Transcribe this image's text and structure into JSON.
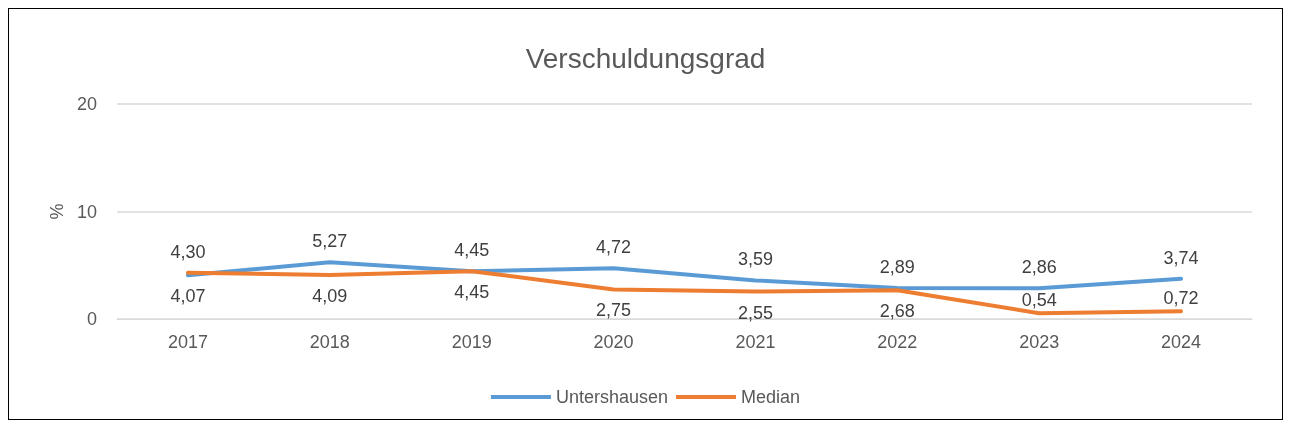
{
  "chart_data": {
    "type": "line",
    "title": "Verschuldungsgrad",
    "ylabel": "%",
    "categories": [
      "2017",
      "2018",
      "2019",
      "2020",
      "2021",
      "2022",
      "2023",
      "2024"
    ],
    "series": [
      {
        "name": "Untershausen",
        "color": "#5b9bd5",
        "values": [
          4.07,
          5.27,
          4.45,
          4.72,
          3.59,
          2.89,
          2.86,
          3.74
        ],
        "value_labels": [
          "4,07",
          "5,27",
          "4,45",
          "4,72",
          "3,59",
          "2,89",
          "2,86",
          "3,74"
        ]
      },
      {
        "name": "Median",
        "color": "#ed7d31",
        "values": [
          4.3,
          4.09,
          4.45,
          2.75,
          2.55,
          2.68,
          0.54,
          0.72
        ],
        "value_labels": [
          "4,30",
          "4,09",
          "4,45",
          "2,75",
          "2,55",
          "2,68",
          "0,54",
          "0,72"
        ]
      }
    ],
    "ylim": [
      0,
      20
    ],
    "yticks": [
      0,
      10,
      20
    ],
    "grid": "y",
    "legend": "bottom",
    "marker": "none",
    "line_style": "solid"
  }
}
